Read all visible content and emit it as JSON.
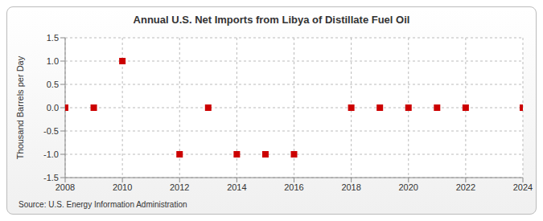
{
  "chart_data": {
    "type": "scatter",
    "title": "Annual U.S. Net Imports from Libya of Distillate Fuel Oil",
    "y_label": "Thousand Barrels per Day",
    "source": "Source: U.S. Energy Information Administration",
    "x": [
      2008,
      2009,
      2010,
      2012,
      2013,
      2014,
      2015,
      2016,
      2018,
      2019,
      2020,
      2021,
      2022,
      2024
    ],
    "values": [
      0,
      0,
      1,
      -1,
      0,
      -1,
      -1,
      -1,
      0,
      0,
      0,
      0,
      0,
      0
    ],
    "color": "#cc0000",
    "marker": "square",
    "xlim": [
      2008,
      2024
    ],
    "xticks": [
      2008,
      2010,
      2012,
      2014,
      2016,
      2018,
      2020,
      2022,
      2024
    ],
    "ylim": [
      -1.5,
      1.5
    ],
    "yticks": [
      -1.5,
      {
        "value": -1,
        "label": "-1.0"
      },
      -0.5,
      {
        "value": 0,
        "label": "0.0"
      },
      0.5,
      {
        "value": 1,
        "label": "1.0"
      },
      1.5
    ],
    "grid": true
  }
}
